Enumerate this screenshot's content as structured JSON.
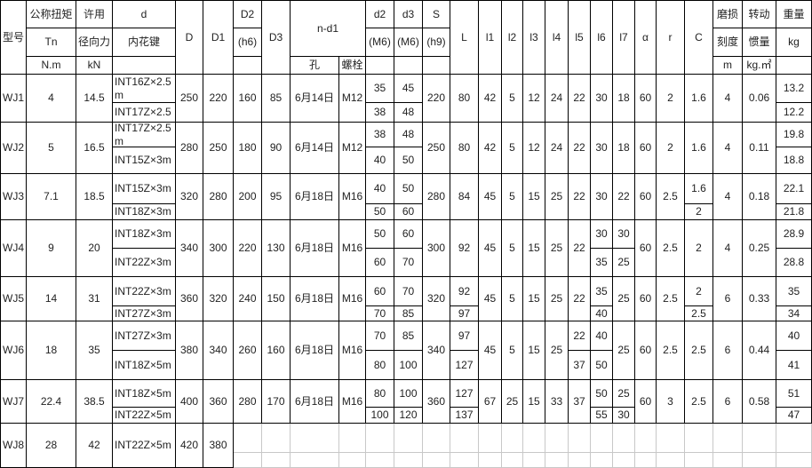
{
  "header": {
    "model": "型号",
    "torque": [
      "公称扭矩",
      "Tn",
      "N.m"
    ],
    "radial": [
      "许用",
      "径向力",
      "kN"
    ],
    "d": [
      "d",
      "内花键"
    ],
    "D": "D",
    "D1": "D1",
    "D2": [
      "D2",
      "(h6)"
    ],
    "D3": "D3",
    "nd1": "n-d1",
    "hole": "孔",
    "bolt": "螺栓",
    "d2": [
      "d2",
      "(M6)"
    ],
    "d3": [
      "d3",
      "(M6)"
    ],
    "S": [
      "S",
      "(h9)"
    ],
    "L": "L",
    "l1": "l1",
    "l2": "l2",
    "l3": "l3",
    "l4": "l4",
    "l5": "l5",
    "l6": "l6",
    "l7": "l7",
    "alpha": "α",
    "r": "r",
    "C": "C",
    "wear": [
      "磨损",
      "刻度",
      "m"
    ],
    "inertia": [
      "转动",
      "惯量",
      "kg.㎡"
    ],
    "weight": [
      "重量",
      "kg"
    ]
  },
  "rows": [
    [
      "WJ1",
      "4",
      "14.5",
      [
        "INT16Z×2.5m",
        "INT17Z×2.5"
      ],
      "250",
      "220",
      "160",
      "85",
      "6月14日",
      "M12",
      [
        "35",
        "38"
      ],
      [
        "45",
        "48"
      ],
      "220",
      "80",
      "42",
      "5",
      "12",
      "24",
      "22",
      "30",
      "18",
      "60",
      "2",
      "1.6",
      "4",
      "0.06",
      [
        "13.2",
        "12.2"
      ]
    ],
    [
      "WJ2",
      "5",
      "16.5",
      [
        "INT17Z×2.5m",
        "INT15Z×3m"
      ],
      "280",
      "250",
      "180",
      "90",
      "6月14日",
      "M12",
      [
        "38",
        "40"
      ],
      [
        "48",
        "50"
      ],
      "250",
      "80",
      "42",
      "5",
      "12",
      "24",
      "22",
      "30",
      "18",
      "60",
      "2",
      "1.6",
      "4",
      "0.11",
      [
        "19.8",
        "18.8"
      ]
    ],
    [
      "WJ3",
      "7.1",
      "18.5",
      [
        "INT15Z×3m",
        "INT18Z×3m"
      ],
      "320",
      "280",
      "200",
      "95",
      "6月18日",
      "M16",
      [
        "40",
        "50"
      ],
      [
        "50",
        "60"
      ],
      "280",
      "84",
      "45",
      "5",
      "15",
      "25",
      "22",
      "30",
      "22",
      "60",
      "2.5",
      [
        "1.6",
        "2"
      ],
      "4",
      "0.18",
      [
        "22.1",
        "21.8"
      ]
    ],
    [
      "WJ4",
      "9",
      "20",
      [
        "INT18Z×3m",
        "INT22Z×3m"
      ],
      "340",
      "300",
      "220",
      "130",
      "6月18日",
      "M16",
      [
        "50",
        "60"
      ],
      [
        "60",
        "70"
      ],
      "300",
      "92",
      "45",
      "5",
      "15",
      "25",
      "22",
      [
        "30",
        "35"
      ],
      [
        "30",
        "25"
      ],
      "60",
      "2.5",
      "2",
      "4",
      "0.25",
      [
        "28.9",
        "28.8"
      ]
    ],
    [
      "WJ5",
      "14",
      "31",
      [
        "INT22Z×3m",
        "INT27Z×3m"
      ],
      "360",
      "320",
      "240",
      "150",
      "6月18日",
      "M16",
      [
        "60",
        "70"
      ],
      [
        "70",
        "85"
      ],
      "320",
      [
        "92",
        "97"
      ],
      "45",
      "5",
      "15",
      "25",
      "22",
      [
        "35",
        "40"
      ],
      "25",
      "60",
      "2.5",
      [
        "2",
        "2.5"
      ],
      "6",
      "0.33",
      [
        "35",
        "34"
      ]
    ],
    [
      "WJ6",
      "18",
      "35",
      [
        "INT27Z×3m",
        "INT18Z×5m"
      ],
      "380",
      "340",
      "260",
      "160",
      "6月18日",
      "M16",
      [
        "70",
        "80"
      ],
      [
        "85",
        "100"
      ],
      "340",
      [
        "97",
        "127"
      ],
      "45",
      "5",
      "15",
      "25",
      [
        "22",
        "37"
      ],
      [
        "40",
        "50"
      ],
      "25",
      "60",
      "2.5",
      "2.5",
      "6",
      "0.44",
      [
        "40",
        "41"
      ]
    ],
    [
      "WJ7",
      "22.4",
      "38.5",
      [
        "INT18Z×5m",
        "INT22Z×5m"
      ],
      "400",
      "360",
      "280",
      "170",
      "6月18日",
      "M16",
      [
        "80",
        "100"
      ],
      [
        "100",
        "120"
      ],
      "360",
      [
        "127",
        "137"
      ],
      "67",
      "25",
      "15",
      "33",
      "37",
      [
        "50",
        "55"
      ],
      [
        "25",
        "30"
      ],
      "60",
      "3",
      "2.5",
      "6",
      "0.58",
      [
        "51",
        "47"
      ]
    ],
    [
      "WJ8",
      "28",
      "42",
      "INT22Z×5m",
      "420",
      "380"
    ]
  ]
}
